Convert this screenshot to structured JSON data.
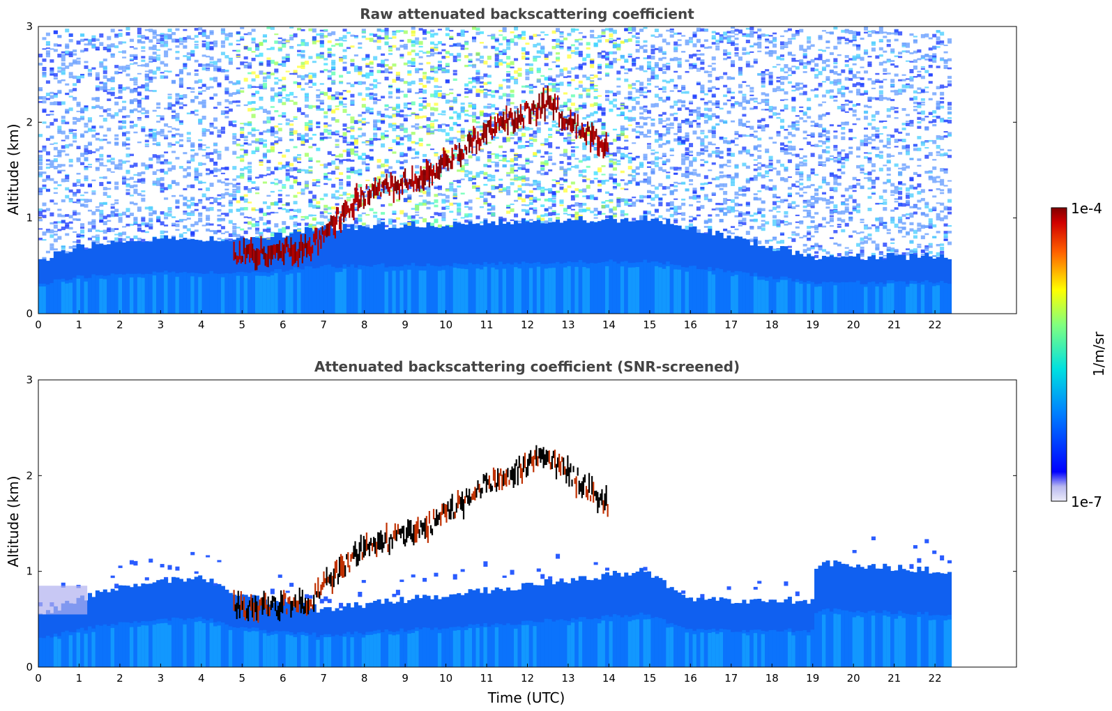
{
  "figure": {
    "xlabel": "Time (UTC)",
    "colorbar": {
      "label": "1/m/sr",
      "max_label": "1e-4",
      "min_label": "1e-7",
      "scale": "log",
      "colormap": "jet",
      "colors": [
        "#e8e8f8",
        "#c8c8f0",
        "#8080f0",
        "#0000ff",
        "#0060ff",
        "#00c0ff",
        "#40ffc0",
        "#c0ff40",
        "#ffe000",
        "#ff6000",
        "#d00000",
        "#800000"
      ]
    }
  },
  "chart_data": [
    {
      "type": "heatmap",
      "title": "Raw attenuated backscattering coefficient",
      "xlabel": "",
      "ylabel": "Altitude (km)",
      "xlim": [
        0,
        24
      ],
      "ylim": [
        0,
        3
      ],
      "xticks": [
        "0",
        "1",
        "2",
        "3",
        "4",
        "5",
        "6",
        "7",
        "8",
        "9",
        "10",
        "11",
        "12",
        "13",
        "14",
        "15",
        "16",
        "17",
        "18",
        "19",
        "20",
        "21",
        "22"
      ],
      "yticks": [
        "0",
        "1",
        "2",
        "3"
      ],
      "data_end_time": 22.4,
      "features": {
        "boundary_layer_top_km": [
          {
            "t": 0,
            "h": 0.55
          },
          {
            "t": 1,
            "h": 0.7
          },
          {
            "t": 3.5,
            "h": 0.8
          },
          {
            "t": 4.8,
            "h": 0.75
          },
          {
            "t": 7,
            "h": 0.9
          },
          {
            "t": 15,
            "h": 1.0
          },
          {
            "t": 19,
            "h": 0.6
          },
          {
            "t": 22.4,
            "h": 0.6
          }
        ],
        "cloud_layer_km": [
          {
            "t": 4.8,
            "h": 0.62
          },
          {
            "t": 6.7,
            "h": 0.68
          },
          {
            "t": 7.1,
            "h": 0.9
          },
          {
            "t": 8.0,
            "h": 1.25
          },
          {
            "t": 9.5,
            "h": 1.45
          },
          {
            "t": 11.0,
            "h": 1.9
          },
          {
            "t": 12.5,
            "h": 2.2
          },
          {
            "t": 14.0,
            "h": 1.7
          }
        ],
        "noisy_high_signal_window_utc": [
          4.8,
          14.5
        ]
      }
    },
    {
      "type": "heatmap",
      "title": "Attenuated backscattering coefficient (SNR-screened)",
      "xlabel": "Time (UTC)",
      "ylabel": "Altitude (km)",
      "xlim": [
        0,
        24
      ],
      "ylim": [
        0,
        3
      ],
      "xticks": [
        "0",
        "1",
        "2",
        "3",
        "4",
        "5",
        "6",
        "7",
        "8",
        "9",
        "10",
        "11",
        "12",
        "13",
        "14",
        "15",
        "16",
        "17",
        "18",
        "19",
        "20",
        "21",
        "22"
      ],
      "yticks": [
        "0",
        "1",
        "2",
        "3"
      ],
      "data_end_time": 22.4,
      "features": {
        "boundary_layer_top_km": [
          {
            "t": 0,
            "h": 0.55
          },
          {
            "t": 1,
            "h": 0.7
          },
          {
            "t": 2,
            "h": 0.85
          },
          {
            "t": 4,
            "h": 0.95
          },
          {
            "t": 4.8,
            "h": 0.75
          },
          {
            "t": 7,
            "h": 0.6
          },
          {
            "t": 14.8,
            "h": 1.0
          },
          {
            "t": 16.2,
            "h": 0.7
          },
          {
            "t": 19,
            "h": 0.7
          },
          {
            "t": 19.1,
            "h": 1.1
          },
          {
            "t": 22.4,
            "h": 1.0
          }
        ],
        "cloud_layer_km": [
          {
            "t": 4.8,
            "h": 0.62
          },
          {
            "t": 6.7,
            "h": 0.68
          },
          {
            "t": 7.1,
            "h": 0.9
          },
          {
            "t": 8.0,
            "h": 1.25
          },
          {
            "t": 9.5,
            "h": 1.45
          },
          {
            "t": 11.0,
            "h": 1.9
          },
          {
            "t": 12.5,
            "h": 2.2
          },
          {
            "t": 14.0,
            "h": 1.7
          }
        ]
      }
    }
  ]
}
